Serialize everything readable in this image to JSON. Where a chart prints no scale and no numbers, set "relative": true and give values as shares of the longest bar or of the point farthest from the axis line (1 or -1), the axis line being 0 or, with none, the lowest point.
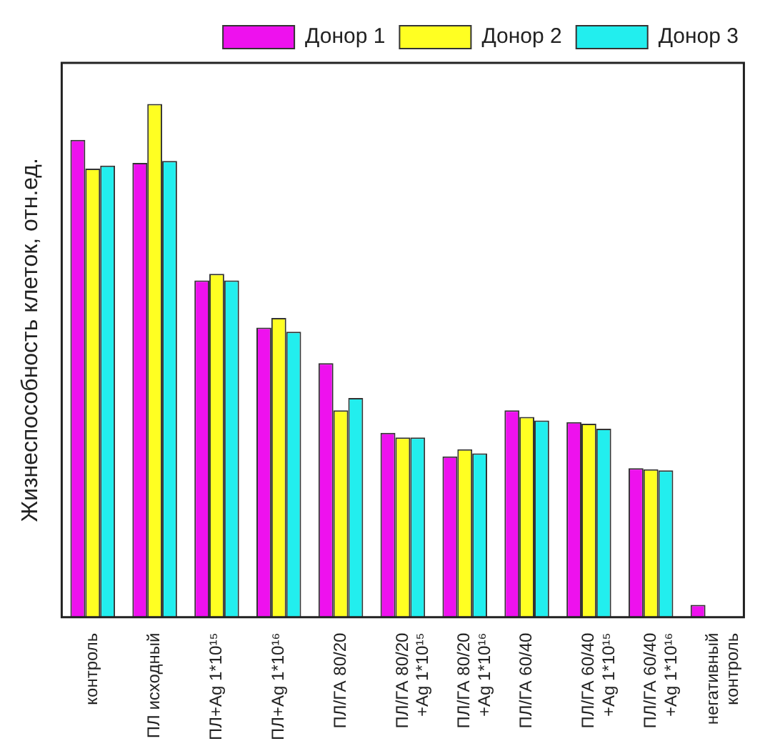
{
  "chart_data": {
    "type": "bar",
    "relative": true,
    "ylabel": "Жизнеспособность клеток, отн.ед.",
    "legend": "top right",
    "categories": [
      "контроль",
      "ПЛ исходный",
      "ПЛ+Ag 1*10¹⁵",
      "ПЛ+Ag 1*10¹⁶",
      "ПЛ/ГА 80/20",
      "ПЛ/ГА 80/20 +Ag 1*10¹⁵",
      "ПЛ/ГА 80/20 +Ag 1*10¹⁶",
      "ПЛ/ГА 60/40",
      "ПЛ/ГА 60/40 +Ag 1*10¹⁵",
      "ПЛ/ГА 60/40 +Ag 1*10¹⁶",
      "негативный контроль"
    ],
    "series": [
      {
        "name": "Донор 1",
        "color": "#ee11ee",
        "values": [
          0.93,
          0.885,
          0.656,
          0.564,
          0.495,
          0.359,
          0.313,
          0.403,
          0.38,
          0.29,
          0.024
        ]
      },
      {
        "name": "Донор 2",
        "color": "#ffff22",
        "values": [
          0.874,
          1,
          0.669,
          0.583,
          0.403,
          0.35,
          0.327,
          0.39,
          0.377,
          0.288,
          null
        ]
      },
      {
        "name": "Донор 3",
        "color": "#22eeee",
        "values": [
          0.88,
          0.889,
          0.656,
          0.556,
          0.427,
          0.35,
          0.319,
          0.383,
          0.367,
          0.286,
          null
        ]
      }
    ]
  }
}
